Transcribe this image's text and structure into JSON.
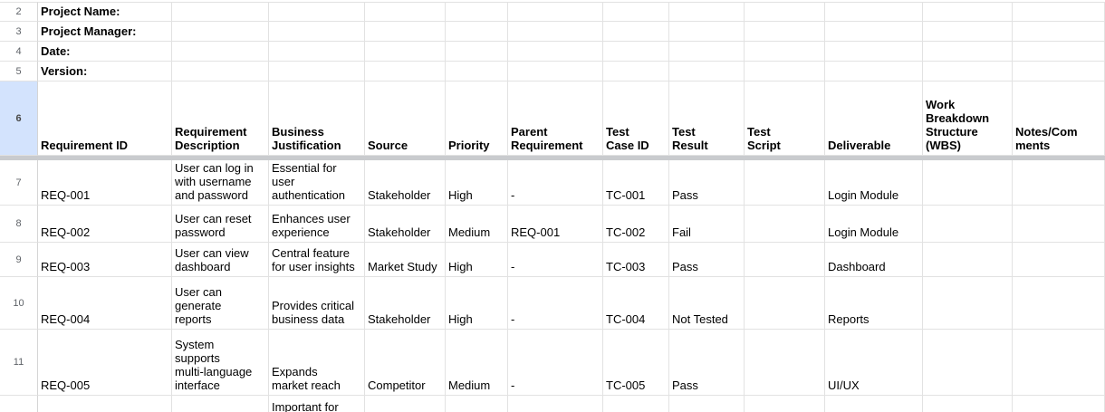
{
  "spreadsheet": {
    "rows": [
      {
        "type": "info",
        "num": "2",
        "cells": [
          "Project Name:",
          "",
          "",
          "",
          "",
          "",
          "",
          "",
          "",
          "",
          "",
          ""
        ]
      },
      {
        "type": "info",
        "num": "3",
        "cells": [
          "Project Manager:",
          "",
          "",
          "",
          "",
          "",
          "",
          "",
          "",
          "",
          "",
          ""
        ]
      },
      {
        "type": "info",
        "num": "4",
        "cells": [
          "Date:",
          "",
          "",
          "",
          "",
          "",
          "",
          "",
          "",
          "",
          "",
          ""
        ]
      },
      {
        "type": "info",
        "num": "5",
        "cells": [
          "Version:",
          "",
          "",
          "",
          "",
          "",
          "",
          "",
          "",
          "",
          "",
          ""
        ]
      },
      {
        "type": "header",
        "num": "6",
        "cells": [
          "Requirement ID",
          "Requirement\nDescription",
          "Business\nJustification",
          "Source",
          "Priority",
          "Parent\nRequirement",
          "Test\nCase ID",
          "Test\nResult",
          "Test\nScript",
          "Deliverable",
          "Work\nBreakdown\nStructure\n(WBS)",
          "Notes/Com\nments"
        ]
      },
      {
        "type": "data",
        "num": "7",
        "cells": [
          "REQ-001",
          "User can log in\nwith username\nand password",
          "Essential for\nuser\nauthentication",
          "Stakeholder",
          "High",
          "-",
          "TC-001",
          "Pass",
          "",
          "Login Module",
          "",
          ""
        ]
      },
      {
        "type": "data",
        "num": "8",
        "cells": [
          "REQ-002",
          "User can reset\npassword",
          "Enhances user\nexperience",
          "Stakeholder",
          "Medium",
          "REQ-001",
          "TC-002",
          "Fail",
          "",
          "Login Module",
          "",
          ""
        ]
      },
      {
        "type": "data",
        "num": "9",
        "cells": [
          "REQ-003",
          "User can view\ndashboard",
          "Central feature\nfor user insights",
          "Market Study",
          "High",
          "-",
          "TC-003",
          "Pass",
          "",
          "Dashboard",
          "",
          ""
        ]
      },
      {
        "type": "data",
        "num": "10",
        "cells": [
          "REQ-004",
          "User can\ngenerate\nreports",
          "Provides critical\nbusiness data",
          "Stakeholder",
          "High",
          "-",
          "TC-004",
          "Not Tested",
          "",
          "Reports",
          "",
          ""
        ]
      },
      {
        "type": "data",
        "num": "11",
        "cells": [
          "REQ-005",
          "System\nsupports\nmulti-language\ninterface",
          "Expands\nmarket reach",
          "Competitor",
          "Medium",
          "-",
          "TC-005",
          "Pass",
          "",
          "UI/UX",
          "",
          ""
        ]
      },
      {
        "type": "partial",
        "num": "",
        "cells": [
          "",
          "",
          "Important for",
          "",
          "",
          "",
          "",
          "",
          "",
          "",
          "",
          ""
        ]
      }
    ],
    "colors": {
      "active_row_header_bg": "#d3e3fd",
      "gridline": "#e2e2e2",
      "row_number_text": "#5f6368",
      "frozen_divider": "#c9cbce",
      "cell_text": "#000000"
    }
  }
}
